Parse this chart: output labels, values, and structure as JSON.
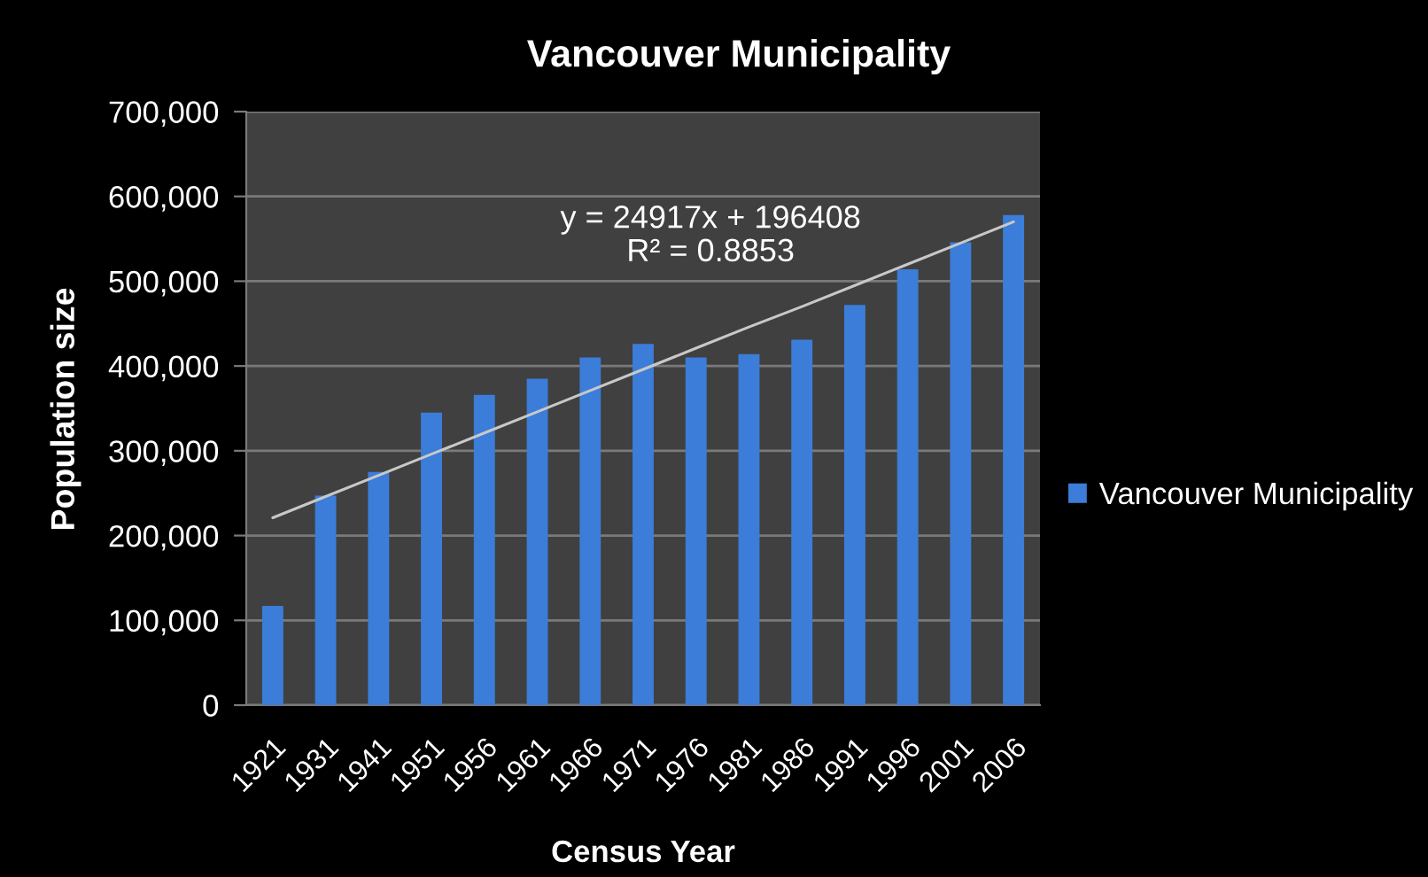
{
  "chart_data": {
    "type": "bar",
    "title": "Vancouver Municipality",
    "xlabel": "Census Year",
    "ylabel": "Population size",
    "categories": [
      "1921",
      "1931",
      "1941",
      "1951",
      "1956",
      "1961",
      "1966",
      "1971",
      "1976",
      "1981",
      "1986",
      "1991",
      "1996",
      "2001",
      "2006"
    ],
    "series": [
      {
        "name": "Vancouver Municipality",
        "color": "#3b7dd8",
        "values": [
          117000,
          247000,
          275000,
          345000,
          366000,
          385000,
          410000,
          426000,
          410000,
          414000,
          431000,
          472000,
          514000,
          546000,
          578000
        ]
      },
      {
        "type": "line",
        "color": "#c8c8c8",
        "values": [
          221000,
          246000,
          271000,
          296000,
          321000,
          346000,
          371000,
          396000,
          421000,
          446000,
          470000,
          495000,
          520000,
          545000,
          570000
        ]
      }
    ],
    "ylim": [
      0,
      700000
    ],
    "yticks": [
      0,
      {
        "value": 100000,
        "label": "100,000"
      },
      {
        "value": 200000,
        "label": "200,000"
      },
      {
        "value": 300000,
        "label": "300,000"
      },
      {
        "value": 400000,
        "label": "400,000"
      },
      {
        "value": 500000,
        "label": "500,000"
      },
      {
        "value": 600000,
        "label": "600,000"
      },
      {
        "value": 700000,
        "label": "700,000"
      }
    ],
    "grid": "y",
    "legend": "right",
    "annotations": [
      "y = 24917x + 196408\nR² = 0.8853"
    ]
  }
}
